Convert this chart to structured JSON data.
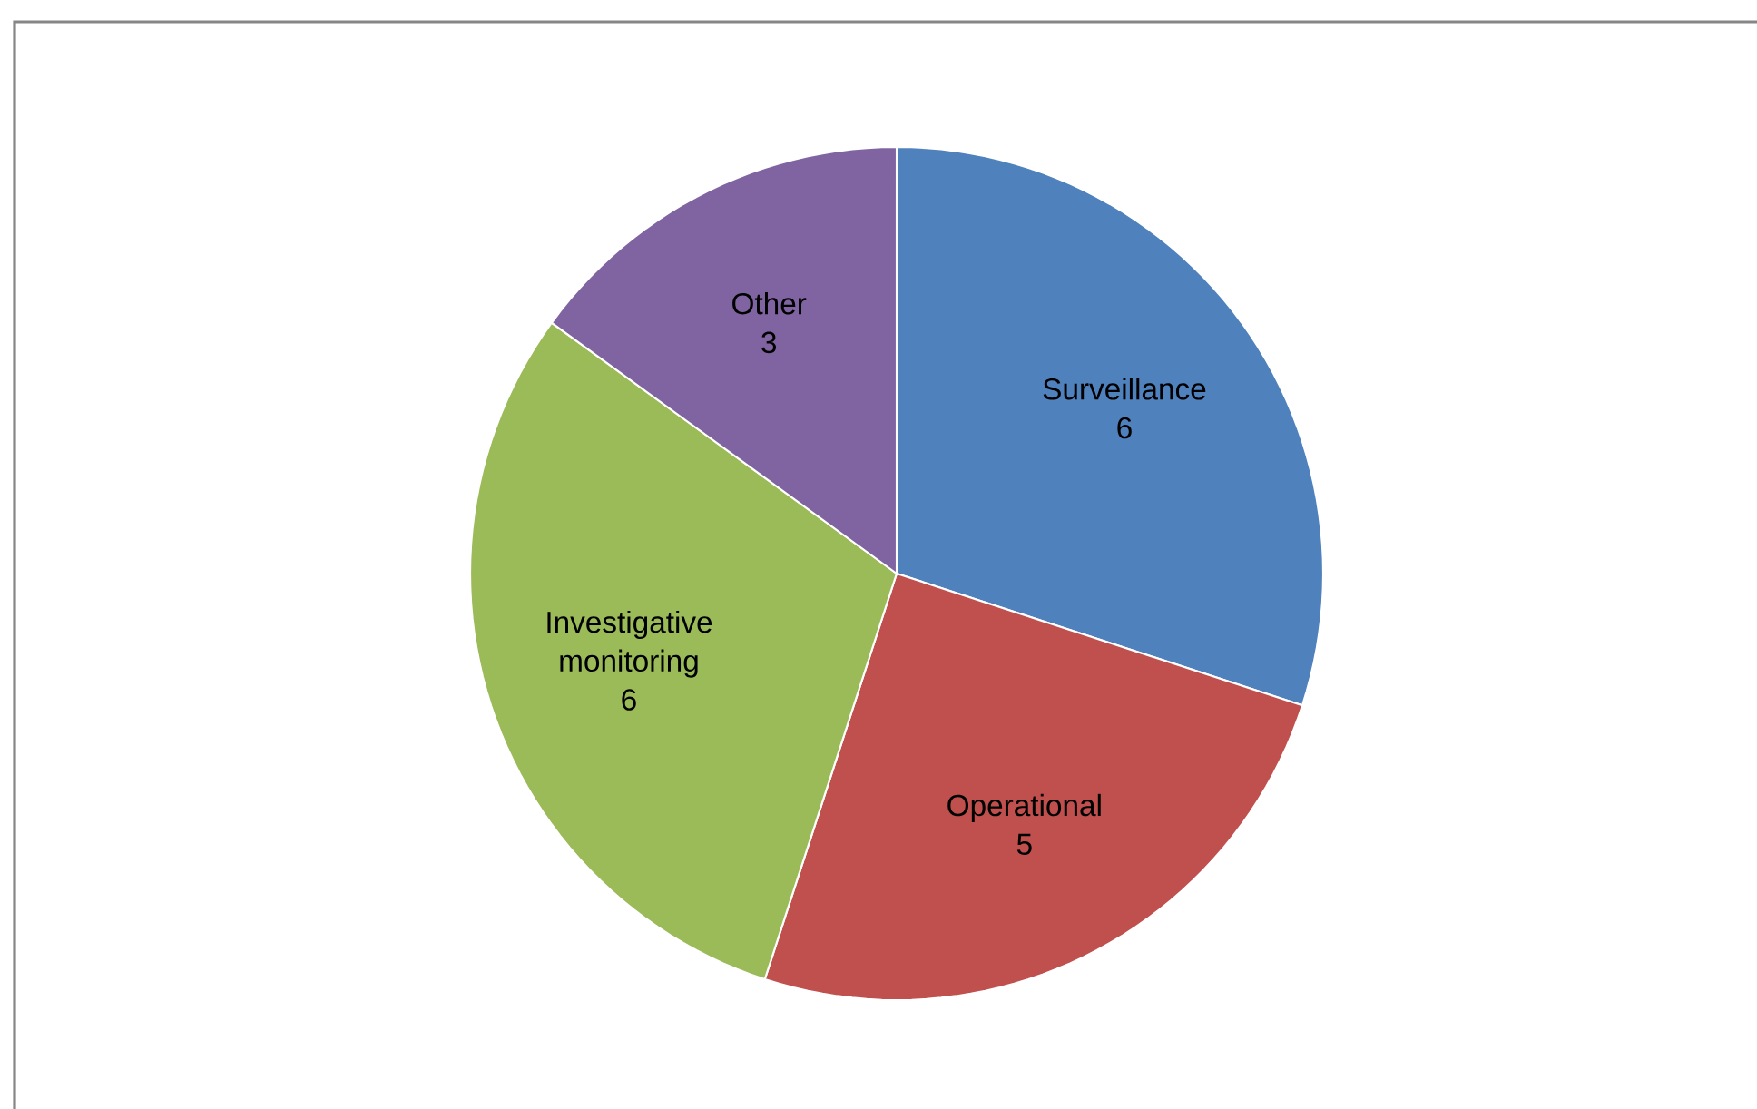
{
  "chart_data": {
    "type": "pie",
    "categories": [
      "Surveillance",
      "Operational",
      "Investigative monitoring",
      "Other"
    ],
    "values": [
      6,
      5,
      6,
      3
    ],
    "colors": [
      "#4f81bd",
      "#c0504d",
      "#9bbb59",
      "#8064a2"
    ],
    "data_labels": true
  }
}
